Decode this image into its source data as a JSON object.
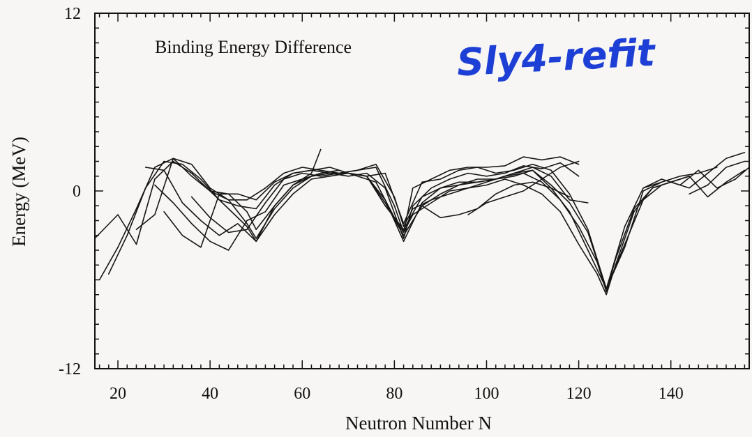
{
  "chart_data": {
    "type": "line",
    "title": "",
    "annotation": "Binding Energy Difference",
    "handwritten_label": "Sly4-refit",
    "handwritten_color": "#1d3fd6",
    "line_color": "#151515",
    "xlabel": "Neutron Number N",
    "ylabel": "Energy (MeV)",
    "xlim": [
      15,
      157
    ],
    "ylim": [
      -12,
      12
    ],
    "x_ticks": [
      "20",
      "40",
      "60",
      "80",
      "100",
      "120",
      "140"
    ],
    "y_ticks": [
      "12",
      "0",
      "-12"
    ],
    "grid": false,
    "series": [
      {
        "x": [
          16,
          20,
          24,
          28,
          32,
          36,
          40,
          44,
          48,
          52,
          56,
          60,
          64,
          68,
          72,
          76,
          80,
          82,
          84,
          88,
          92,
          96,
          100,
          104,
          108,
          112,
          116,
          120
        ],
        "y": [
          -6.0,
          -3.8,
          -1.2,
          1.6,
          2.2,
          1.8,
          0.2,
          -0.6,
          -0.6,
          0.2,
          1.2,
          1.6,
          1.4,
          1.2,
          1.4,
          1.6,
          -1.0,
          -2.8,
          0.2,
          0.8,
          1.4,
          1.6,
          1.6,
          1.7,
          2.3,
          2.1,
          2.3,
          1.8
        ]
      },
      {
        "x": [
          18,
          22,
          26,
          30,
          34,
          38,
          42,
          46,
          50,
          54,
          58,
          62,
          66,
          70,
          74,
          78,
          82,
          84,
          88,
          92,
          96,
          100,
          104,
          108,
          112,
          116,
          120
        ],
        "y": [
          -5.6,
          -3.0,
          0.2,
          2.0,
          1.8,
          0.8,
          -0.6,
          -1.0,
          -1.2,
          0.4,
          1.2,
          1.4,
          1.2,
          1.0,
          1.2,
          0.2,
          -3.2,
          -1.0,
          0.2,
          0.8,
          1.2,
          1.0,
          1.2,
          1.7,
          1.5,
          1.9,
          1.0
        ]
      },
      {
        "x": [
          15,
          20,
          24,
          28,
          32,
          36,
          40,
          44,
          48,
          50,
          54,
          58,
          62,
          66,
          70,
          74,
          78,
          82,
          86,
          90,
          94,
          98,
          102,
          106,
          110,
          114,
          118,
          122
        ],
        "y": [
          -3.2,
          -1.6,
          -3.6,
          0.8,
          2.0,
          1.2,
          0.0,
          -1.2,
          -2.4,
          -3.4,
          -1.0,
          0.4,
          1.0,
          1.2,
          1.2,
          1.0,
          -0.6,
          -3.4,
          -0.8,
          0.2,
          0.4,
          0.8,
          0.8,
          1.2,
          1.6,
          1.0,
          -0.6,
          -0.8
        ]
      },
      {
        "x": [
          24,
          28,
          32,
          36,
          40,
          44,
          48,
          50,
          54,
          58,
          62,
          66,
          70,
          74,
          78,
          82,
          86,
          90,
          94,
          98,
          102,
          106,
          110,
          114,
          118,
          122,
          126,
          130,
          134,
          138
        ],
        "y": [
          -2.6,
          -1.6,
          2.2,
          1.0,
          0.0,
          -0.6,
          -2.2,
          -3.2,
          -1.2,
          0.2,
          1.0,
          1.2,
          1.2,
          1.0,
          -1.0,
          -2.6,
          -0.4,
          0.2,
          0.6,
          0.6,
          0.8,
          1.2,
          1.4,
          0.2,
          -1.4,
          -4.0,
          -6.6,
          -3.8,
          0.0,
          0.6
        ]
      },
      {
        "x": [
          26,
          30,
          34,
          38,
          42,
          46,
          50,
          54,
          58,
          62,
          66,
          70,
          74,
          78,
          82,
          86,
          90,
          94,
          98,
          102,
          106,
          110,
          114,
          118,
          122,
          126,
          130,
          134,
          138,
          142
        ],
        "y": [
          1.6,
          1.4,
          -0.8,
          -2.0,
          -3.0,
          -2.2,
          -3.4,
          -1.6,
          -0.2,
          0.8,
          1.0,
          1.2,
          1.0,
          -0.8,
          -3.0,
          -1.0,
          -0.2,
          0.4,
          0.6,
          0.8,
          1.0,
          1.4,
          0.4,
          -0.8,
          -2.8,
          -6.6,
          -3.6,
          -0.6,
          0.4,
          0.8
        ]
      },
      {
        "x": [
          28,
          32,
          36,
          40,
          44,
          48,
          52,
          56,
          60,
          64,
          68,
          72,
          76,
          80,
          82,
          84,
          88,
          92,
          96,
          100,
          104,
          108,
          112,
          116,
          120,
          124,
          126,
          128,
          132,
          136,
          140,
          144
        ],
        "y": [
          0.4,
          -0.8,
          -2.2,
          -3.4,
          -4.0,
          -2.0,
          -1.4,
          0.4,
          0.8,
          1.2,
          1.4,
          1.0,
          0.6,
          -1.8,
          -2.8,
          -1.6,
          -0.8,
          0.0,
          0.2,
          0.6,
          1.0,
          1.2,
          0.6,
          -0.6,
          -2.4,
          -4.8,
          -6.8,
          -4.6,
          -1.2,
          0.2,
          0.6,
          1.0
        ]
      },
      {
        "x": [
          30,
          34,
          38,
          42,
          46,
          50,
          54,
          58,
          62,
          66,
          70,
          74,
          78,
          82,
          86,
          90,
          94,
          98,
          102,
          106,
          110,
          114,
          118,
          122,
          126,
          130,
          134,
          138,
          142,
          146,
          150
        ],
        "y": [
          -1.4,
          -3.0,
          -3.8,
          -0.2,
          -0.2,
          -0.6,
          0.6,
          1.2,
          1.4,
          1.6,
          1.2,
          1.0,
          1.2,
          -2.2,
          0.6,
          0.8,
          1.4,
          1.6,
          1.2,
          1.4,
          1.8,
          1.4,
          -0.2,
          -2.6,
          -6.6,
          -2.4,
          0.2,
          0.6,
          1.0,
          1.2,
          1.6
        ]
      },
      {
        "x": [
          36,
          40,
          44,
          48,
          52,
          56,
          60,
          64,
          68,
          72,
          76,
          80,
          82,
          84,
          88,
          92,
          96,
          100,
          104,
          108,
          112,
          116,
          120,
          124,
          126,
          128,
          132,
          136,
          140,
          144,
          148,
          152,
          156
        ],
        "y": [
          -0.4,
          -1.8,
          -2.8,
          -2.6,
          -0.8,
          0.8,
          1.2,
          1.0,
          1.2,
          1.4,
          1.8,
          -0.4,
          -2.4,
          -1.2,
          -0.6,
          -0.2,
          0.2,
          0.4,
          0.8,
          0.4,
          -0.2,
          -1.4,
          -3.6,
          -5.6,
          -7.0,
          -5.0,
          -1.4,
          0.2,
          0.6,
          0.2,
          1.2,
          2.2,
          2.6
        ]
      },
      {
        "x": [
          40,
          44,
          48,
          50,
          54,
          58,
          62,
          64
        ],
        "y": [
          0.0,
          -0.2,
          -1.4,
          -2.6,
          -1.0,
          0.4,
          1.2,
          2.8
        ]
      },
      {
        "x": [
          86,
          90,
          94,
          98,
          102,
          106,
          110,
          114,
          118
        ],
        "y": [
          -1.0,
          -1.8,
          -1.6,
          -1.2,
          -0.2,
          0.4,
          0.6,
          0.2,
          -0.4
        ]
      },
      {
        "x": [
          96,
          100,
          104,
          108,
          112,
          116,
          120
        ],
        "y": [
          -1.6,
          -0.8,
          -0.4,
          0.0,
          0.8,
          1.6,
          2.0
        ]
      },
      {
        "x": [
          140,
          144,
          148,
          152,
          156
        ],
        "y": [
          0.6,
          1.0,
          -0.4,
          0.6,
          1.4
        ]
      },
      {
        "x": [
          144,
          148,
          152,
          156
        ],
        "y": [
          -0.2,
          0.4,
          1.6,
          2.0
        ]
      },
      {
        "x": [
          134,
          138,
          142,
          146,
          150,
          154,
          157
        ],
        "y": [
          0.2,
          0.8,
          0.4,
          1.4,
          0.2,
          0.8,
          1.6
        ]
      }
    ]
  }
}
